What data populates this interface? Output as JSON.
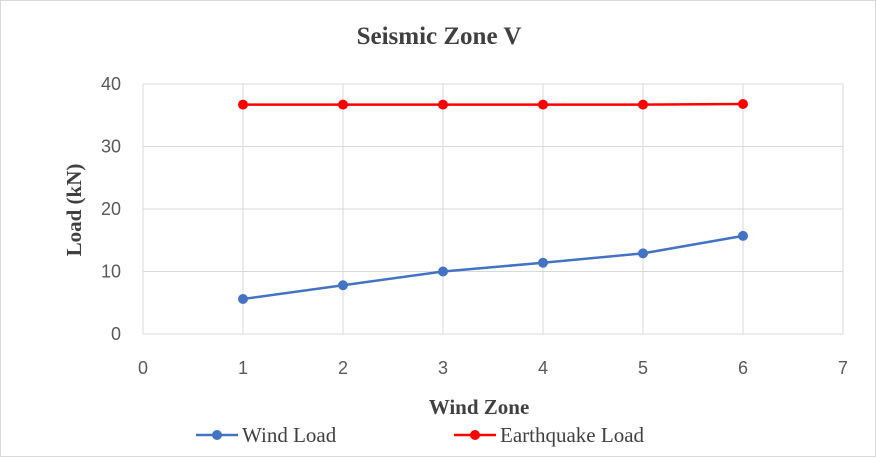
{
  "chart_data": {
    "type": "line",
    "title": "Seismic Zone V",
    "xlabel": "Wind Zone",
    "ylabel": "Load (kN)",
    "xlim": [
      0,
      7
    ],
    "ylim": [
      0,
      40
    ],
    "x_ticks": [
      0,
      1,
      2,
      3,
      4,
      5,
      6,
      7
    ],
    "y_ticks": [
      0,
      10,
      20,
      30,
      40
    ],
    "grid": true,
    "legend_position": "bottom",
    "series": [
      {
        "name": "Wind Load",
        "color": "#4472c4",
        "x": [
          1,
          2,
          3,
          4,
          5,
          6
        ],
        "y": [
          5.6,
          7.8,
          10.0,
          11.4,
          12.9,
          15.7
        ]
      },
      {
        "name": "Earthquake Load",
        "color": "#ff0000",
        "x": [
          1,
          2,
          3,
          4,
          5,
          6
        ],
        "y": [
          36.7,
          36.7,
          36.7,
          36.7,
          36.7,
          36.8
        ]
      }
    ]
  }
}
